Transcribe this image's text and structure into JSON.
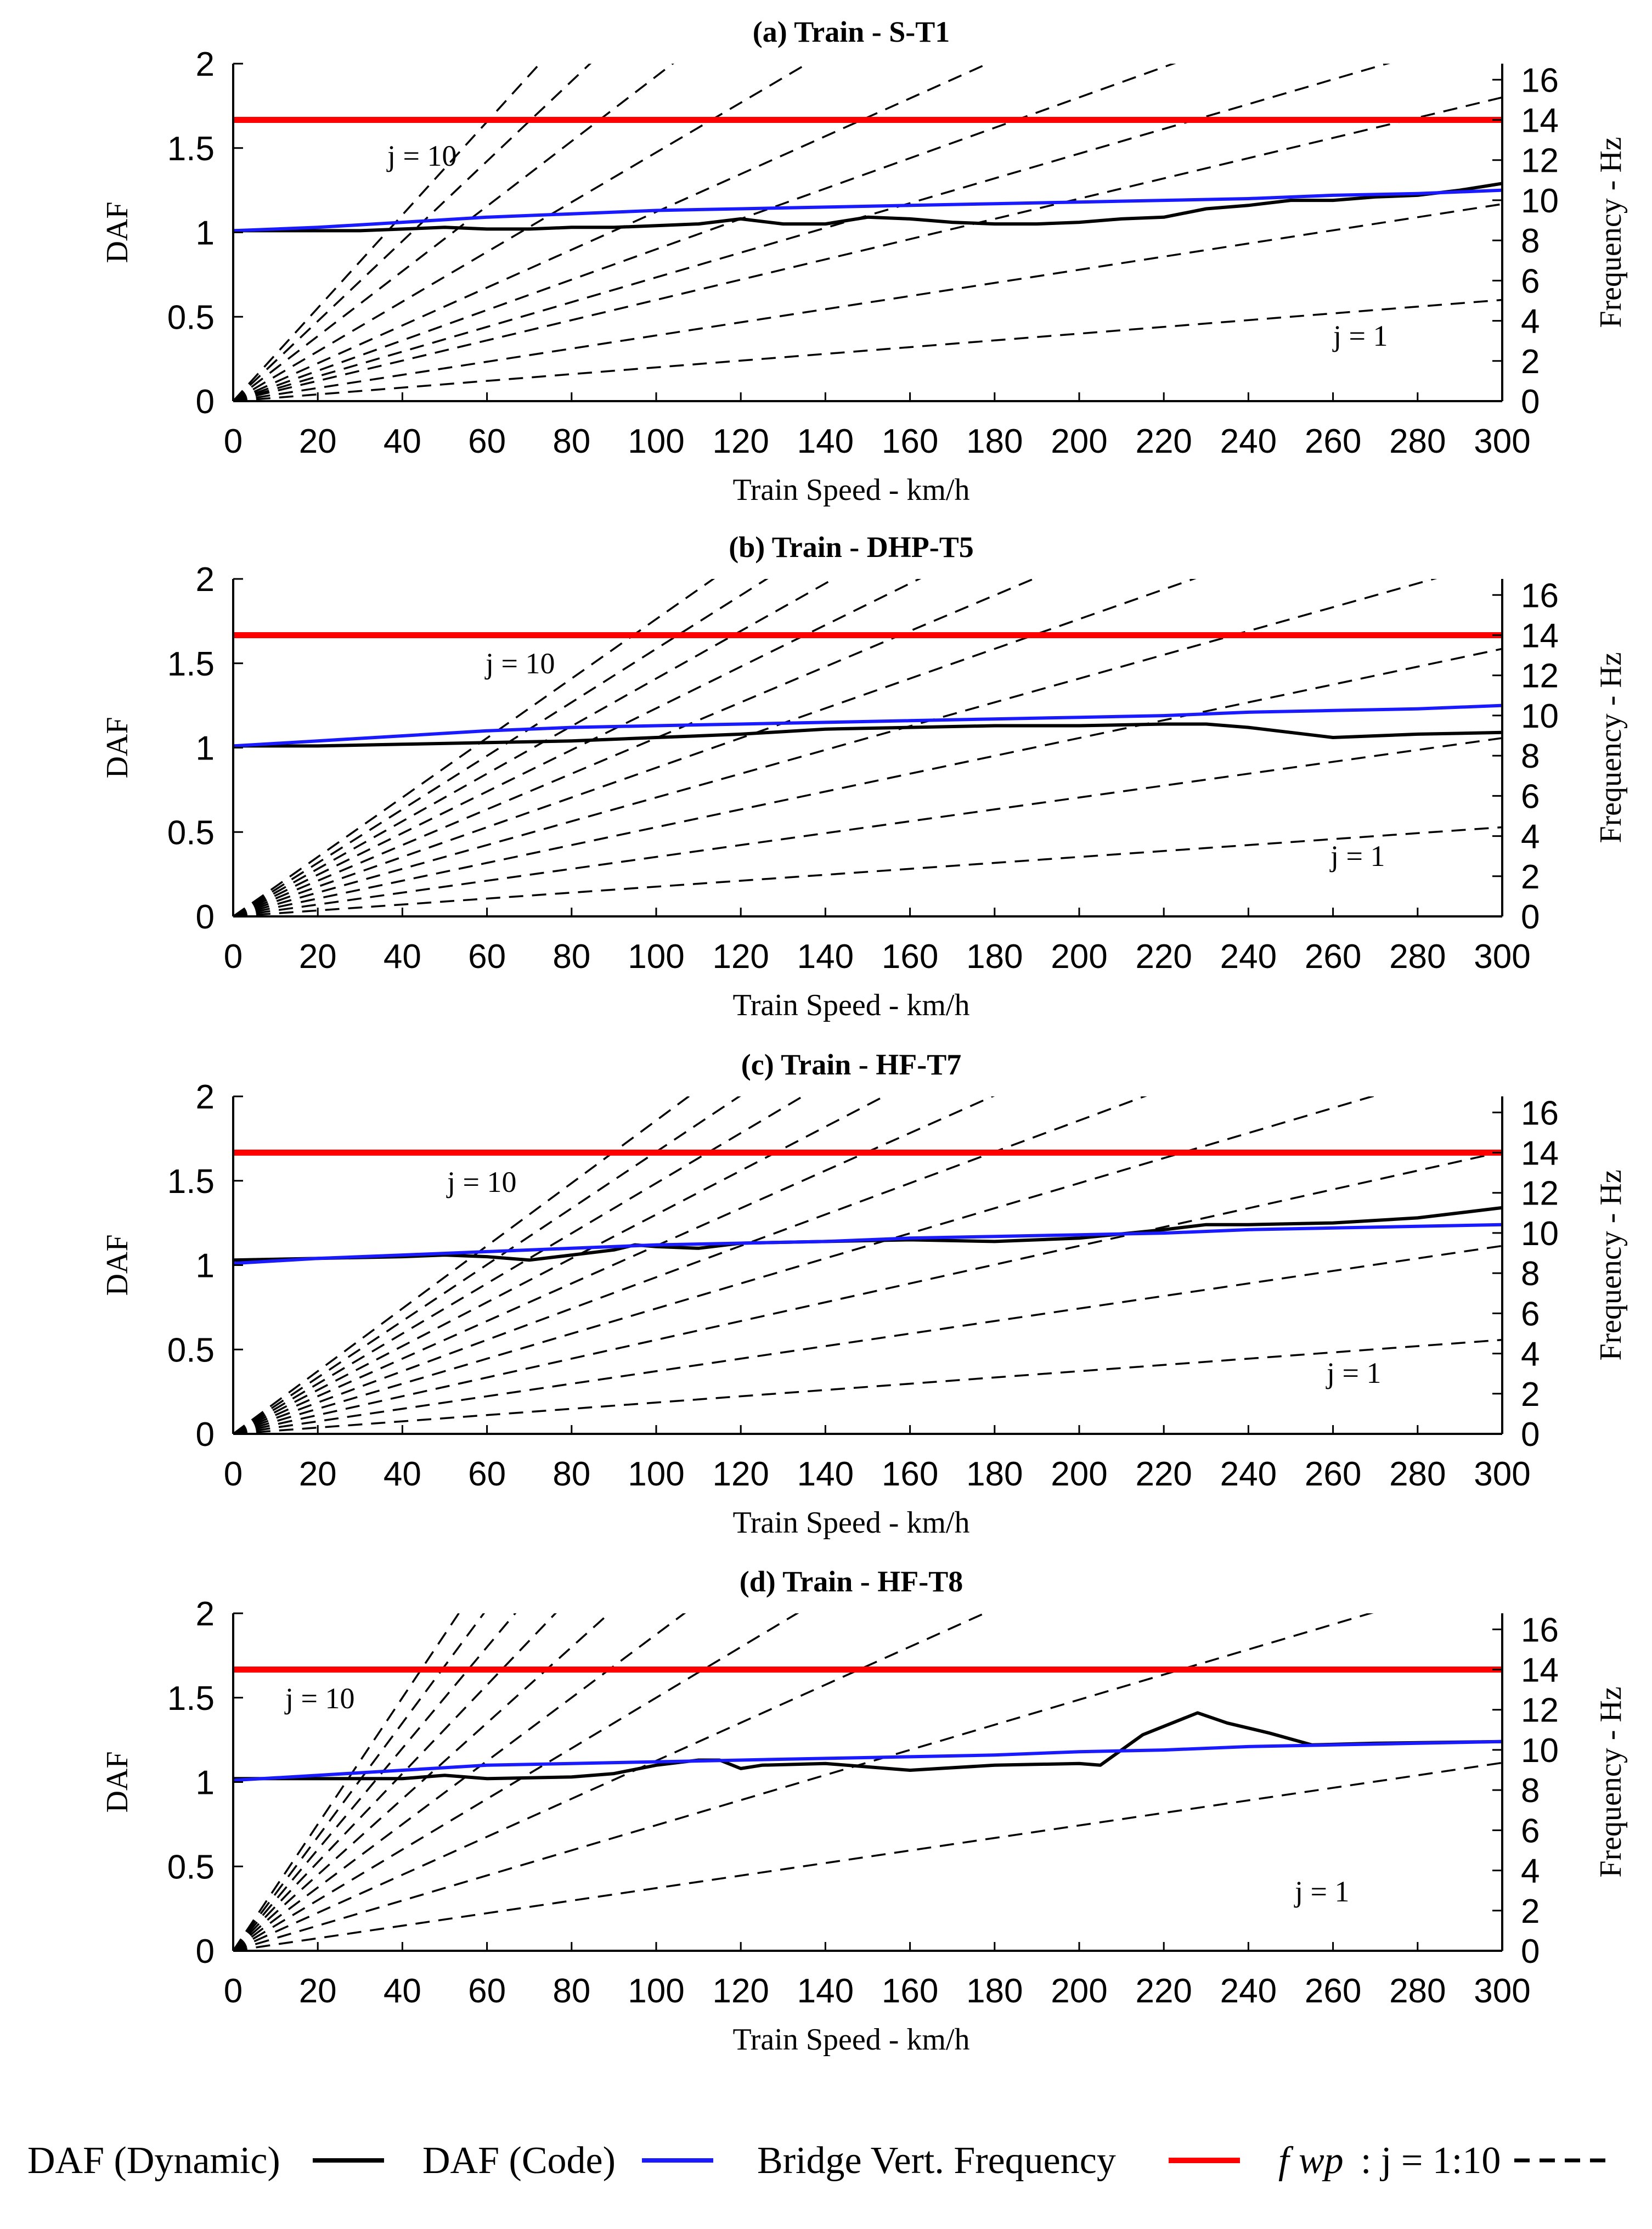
{
  "colors": {
    "daf_dynamic": "#000000",
    "daf_code": "#1a1aff",
    "bridge_frequency": "#ff0000",
    "fwp_lines": "#000000",
    "axis": "#000000"
  },
  "legend": {
    "daf_dynamic": "DAF (Dynamic)",
    "daf_code": "DAF (Code)",
    "bridge_frequency": "Bridge Vert. Frequency",
    "fwp_prefix": "f wp",
    "fwp_suffix": ": j = 1:10"
  },
  "chart_data": [
    {
      "type": "line",
      "title": "(a) Train - S-T1",
      "xlabel": "Train Speed - km/h",
      "ylabel": "DAF",
      "y2label": "Frequency - Hz",
      "xlim": [
        0,
        300
      ],
      "ylim": [
        0,
        2
      ],
      "y2lim": [
        0,
        16.8
      ],
      "xticks": [
        0,
        20,
        40,
        60,
        80,
        100,
        120,
        140,
        160,
        180,
        200,
        220,
        240,
        260,
        280,
        300
      ],
      "yticks": [
        0,
        0.5,
        1,
        1.5,
        2
      ],
      "yticklabels": [
        "0",
        "0.5",
        "1",
        "1.5",
        "2"
      ],
      "y2ticks": [
        0,
        2,
        4,
        6,
        8,
        10,
        12,
        14,
        16
      ],
      "bridge_frequency_hz": 14.0,
      "fwp_slopes_hz_per_kmh": [
        0.0168,
        0.0327,
        0.0504,
        0.0616,
        0.0756,
        0.0942,
        0.1238,
        0.1617,
        0.1991,
        0.2318
      ],
      "label_j_top": "j = 10",
      "label_j_bottom": "j = 1",
      "series": [
        {
          "name": "DAF (Dynamic)",
          "x": [
            0,
            10,
            20,
            30,
            40,
            50,
            60,
            70,
            80,
            90,
            100,
            110,
            120,
            130,
            140,
            150,
            160,
            170,
            180,
            190,
            200,
            210,
            220,
            230,
            240,
            250,
            260,
            270,
            280,
            290,
            300
          ],
          "values": [
            1.01,
            1.01,
            1.01,
            1.01,
            1.02,
            1.03,
            1.02,
            1.02,
            1.03,
            1.03,
            1.04,
            1.05,
            1.08,
            1.05,
            1.05,
            1.09,
            1.08,
            1.06,
            1.05,
            1.05,
            1.06,
            1.08,
            1.09,
            1.14,
            1.16,
            1.19,
            1.19,
            1.21,
            1.22,
            1.25,
            1.29
          ]
        },
        {
          "name": "DAF (Code)",
          "x": [
            0,
            20,
            40,
            60,
            80,
            100,
            120,
            140,
            160,
            180,
            200,
            220,
            240,
            260,
            280,
            300
          ],
          "values": [
            1.01,
            1.03,
            1.06,
            1.09,
            1.11,
            1.13,
            1.14,
            1.15,
            1.16,
            1.17,
            1.18,
            1.19,
            1.2,
            1.22,
            1.23,
            1.25
          ]
        }
      ]
    },
    {
      "type": "line",
      "title": "(b) Train - DHP-T5",
      "xlabel": "Train Speed - km/h",
      "ylabel": "DAF",
      "y2label": "Frequency - Hz",
      "xlim": [
        0,
        300
      ],
      "ylim": [
        0,
        2
      ],
      "y2lim": [
        0,
        16.8
      ],
      "xticks": [
        0,
        20,
        40,
        60,
        80,
        100,
        120,
        140,
        160,
        180,
        200,
        220,
        240,
        260,
        280,
        300
      ],
      "yticks": [
        0,
        0.5,
        1,
        1.5,
        2
      ],
      "yticklabels": [
        "0",
        "0.5",
        "1",
        "1.5",
        "2"
      ],
      "y2ticks": [
        0,
        2,
        4,
        6,
        8,
        10,
        12,
        14,
        16
      ],
      "bridge_frequency_hz": 14.0,
      "fwp_slopes_hz_per_kmh": [
        0.0148,
        0.0296,
        0.0444,
        0.0592,
        0.074,
        0.0888,
        0.1036,
        0.1184,
        0.1332,
        0.148
      ],
      "label_j_top": "j = 10",
      "label_j_bottom": "j = 1",
      "series": [
        {
          "name": "DAF (Dynamic)",
          "x": [
            0,
            20,
            40,
            60,
            80,
            100,
            110,
            120,
            140,
            160,
            180,
            200,
            220,
            230,
            240,
            260,
            280,
            300
          ],
          "values": [
            1.01,
            1.01,
            1.02,
            1.03,
            1.04,
            1.06,
            1.07,
            1.08,
            1.11,
            1.12,
            1.13,
            1.13,
            1.14,
            1.14,
            1.12,
            1.06,
            1.08,
            1.09
          ]
        },
        {
          "name": "DAF (Code)",
          "x": [
            0,
            20,
            40,
            60,
            80,
            100,
            120,
            140,
            160,
            180,
            200,
            220,
            240,
            260,
            280,
            300
          ],
          "values": [
            1.01,
            1.04,
            1.07,
            1.1,
            1.12,
            1.13,
            1.14,
            1.15,
            1.16,
            1.17,
            1.18,
            1.19,
            1.21,
            1.22,
            1.23,
            1.25
          ]
        }
      ]
    },
    {
      "type": "line",
      "title": "(c) Train - HF-T7",
      "xlabel": "Train Speed - km/h",
      "ylabel": "DAF",
      "y2label": "Frequency - Hz",
      "xlim": [
        0,
        300
      ],
      "ylim": [
        0,
        2
      ],
      "y2lim": [
        0,
        16.8
      ],
      "xticks": [
        0,
        20,
        40,
        60,
        80,
        100,
        120,
        140,
        160,
        180,
        200,
        220,
        240,
        260,
        280,
        300
      ],
      "yticks": [
        0,
        0.5,
        1,
        1.5,
        2
      ],
      "yticklabels": [
        "0",
        "0.5",
        "1",
        "1.5",
        "2"
      ],
      "y2ticks": [
        0,
        2,
        4,
        6,
        8,
        10,
        12,
        14,
        16
      ],
      "bridge_frequency_hz": 14.0,
      "fwp_slopes_hz_per_kmh": [
        0.0156,
        0.0312,
        0.0468,
        0.0624,
        0.078,
        0.0936,
        0.1092,
        0.1248,
        0.1404,
        0.156
      ],
      "label_j_top": "j = 10",
      "label_j_bottom": "j = 1",
      "series": [
        {
          "name": "DAF (Dynamic)",
          "x": [
            0,
            20,
            40,
            50,
            60,
            70,
            80,
            90,
            95,
            100,
            110,
            120,
            140,
            160,
            180,
            200,
            220,
            230,
            240,
            260,
            280,
            300
          ],
          "values": [
            1.03,
            1.04,
            1.05,
            1.06,
            1.05,
            1.03,
            1.06,
            1.09,
            1.12,
            1.11,
            1.1,
            1.13,
            1.14,
            1.15,
            1.14,
            1.16,
            1.21,
            1.24,
            1.24,
            1.25,
            1.28,
            1.34
          ]
        },
        {
          "name": "DAF (Code)",
          "x": [
            0,
            20,
            40,
            60,
            80,
            100,
            120,
            140,
            160,
            180,
            200,
            220,
            240,
            260,
            280,
            300
          ],
          "values": [
            1.01,
            1.04,
            1.06,
            1.08,
            1.1,
            1.12,
            1.13,
            1.14,
            1.16,
            1.17,
            1.18,
            1.19,
            1.21,
            1.22,
            1.23,
            1.24
          ]
        }
      ]
    },
    {
      "type": "line",
      "title": "(d) Train - HF-T8",
      "xlabel": "Train Speed - km/h",
      "ylabel": "DAF",
      "y2label": "Frequency - Hz",
      "xlim": [
        0,
        300
      ],
      "ylim": [
        0,
        2
      ],
      "y2lim": [
        0,
        16.8
      ],
      "xticks": [
        0,
        20,
        40,
        60,
        80,
        100,
        120,
        140,
        160,
        180,
        200,
        220,
        240,
        260,
        280,
        300
      ],
      "yticks": [
        0,
        0.5,
        1,
        1.5,
        2
      ],
      "yticklabels": [
        "0",
        "0.5",
        "1",
        "1.5",
        "2"
      ],
      "y2ticks": [
        0,
        2,
        4,
        6,
        8,
        10,
        12,
        14,
        16
      ],
      "bridge_frequency_hz": 14.0,
      "fwp_slopes_hz_per_kmh": [
        0.0312,
        0.0625,
        0.0946,
        0.126,
        0.1575,
        0.189,
        0.2205,
        0.252,
        0.2835,
        0.315
      ],
      "label_j_top": "j = 10",
      "label_j_bottom": "j = 1",
      "series": [
        {
          "name": "DAF (Dynamic)",
          "x": [
            0,
            20,
            40,
            50,
            60,
            80,
            90,
            100,
            110,
            115,
            120,
            125,
            140,
            160,
            180,
            200,
            205,
            215,
            228,
            235,
            245,
            255,
            270,
            300
          ],
          "values": [
            1.02,
            1.02,
            1.02,
            1.04,
            1.02,
            1.03,
            1.05,
            1.1,
            1.13,
            1.13,
            1.08,
            1.1,
            1.11,
            1.07,
            1.1,
            1.11,
            1.1,
            1.28,
            1.41,
            1.35,
            1.29,
            1.22,
            1.23,
            1.24
          ]
        },
        {
          "name": "DAF (Code)",
          "x": [
            0,
            20,
            40,
            60,
            80,
            100,
            120,
            140,
            160,
            180,
            200,
            220,
            240,
            260,
            280,
            300
          ],
          "values": [
            1.01,
            1.04,
            1.07,
            1.1,
            1.11,
            1.12,
            1.13,
            1.14,
            1.15,
            1.16,
            1.18,
            1.19,
            1.21,
            1.22,
            1.23,
            1.24
          ]
        }
      ]
    }
  ]
}
